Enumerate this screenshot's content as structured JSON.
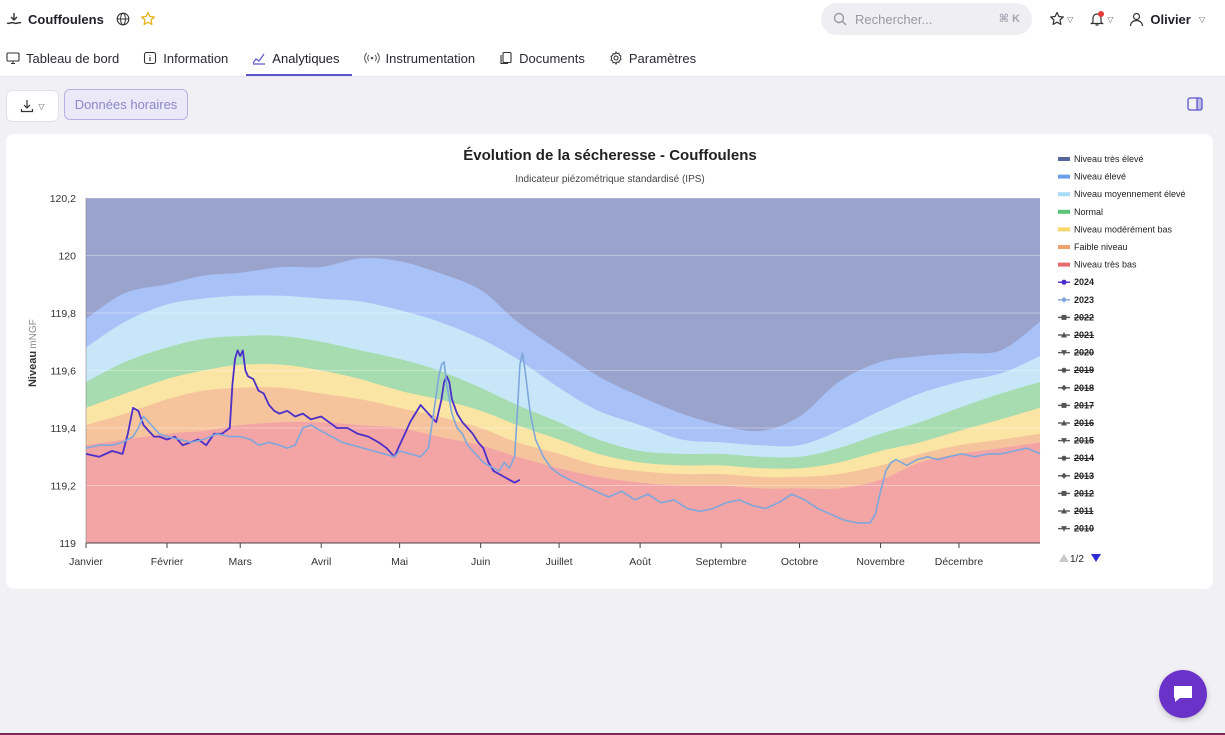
{
  "header": {
    "site_name": "Couffoulens",
    "search_placeholder": "Rechercher...",
    "search_shortcut": "⌘ K",
    "user_name": "Olivier"
  },
  "tabs": [
    {
      "label": "Tableau de bord",
      "icon": "monitor-icon"
    },
    {
      "label": "Information",
      "icon": "info-icon"
    },
    {
      "label": "Analytiques",
      "icon": "analytics-icon",
      "active": true
    },
    {
      "label": "Instrumentation",
      "icon": "signal-icon"
    },
    {
      "label": "Documents",
      "icon": "documents-icon"
    },
    {
      "label": "Paramètres",
      "icon": "gear-icon"
    }
  ],
  "toolbar": {
    "hourly_label": "Données horaires"
  },
  "colors": {
    "accent": "#5b55c9",
    "chat": "#6a32c9"
  },
  "chart_data": {
    "type": "area",
    "title": "Évolution de la sécheresse - Couffoulens",
    "subtitle": "Indicateur piézométrique standardisé (IPS)",
    "ylabel": "Niveau",
    "yunit": "mNGF",
    "ylim": [
      119,
      120.2
    ],
    "yticks": [
      "120,2",
      "120",
      "119,8",
      "119,6",
      "119,4",
      "119,2",
      "119"
    ],
    "ytick_values": [
      120.2,
      120,
      119.8,
      119.6,
      119.4,
      119.2,
      119
    ],
    "xlim": [
      0,
      365
    ],
    "months": [
      "Janvier",
      "Février",
      "Mars",
      "Avril",
      "Mai",
      "Juin",
      "Juillet",
      "Août",
      "Septembre",
      "Octobre",
      "Novembre",
      "Décembre"
    ],
    "month_days": [
      0,
      31,
      59,
      90,
      120,
      151,
      181,
      212,
      243,
      273,
      304,
      334
    ],
    "grid": true,
    "legend_position": "right",
    "legend_page": "1/2",
    "bands_x": [
      0,
      15,
      31,
      45,
      59,
      75,
      90,
      105,
      120,
      135,
      151,
      165,
      181,
      196,
      212,
      228,
      243,
      258,
      273,
      288,
      304,
      319,
      334,
      350,
      365
    ],
    "bands": [
      {
        "name": "Niveau très élevé",
        "color": "#9aa3cb",
        "legend_color": "#55659d",
        "upper": [
          120.2,
          120.2,
          120.2,
          120.2,
          120.2,
          120.2,
          120.2,
          120.2,
          120.2,
          120.2,
          120.2,
          120.2,
          120.2,
          120.2,
          120.2,
          120.2,
          120.2,
          120.2,
          120.2,
          120.2,
          120.2,
          120.2,
          120.2,
          120.2,
          120.2
        ]
      },
      {
        "name": "Niveau élevé",
        "color": "#a8c1f7",
        "legend_color": "#6b9eeb",
        "upper": [
          119.78,
          119.87,
          119.9,
          119.93,
          119.94,
          119.96,
          119.96,
          119.99,
          119.98,
          119.94,
          119.88,
          119.77,
          119.67,
          119.58,
          119.51,
          119.45,
          119.41,
          119.39,
          119.44,
          119.56,
          119.63,
          119.65,
          119.66,
          119.67,
          119.77
        ]
      },
      {
        "name": "Niveau moyennement élevé",
        "color": "#c7e7f9",
        "legend_color": "#a9dcf4",
        "upper": [
          119.68,
          119.77,
          119.83,
          119.85,
          119.86,
          119.86,
          119.85,
          119.84,
          119.81,
          119.77,
          119.71,
          119.64,
          119.54,
          119.46,
          119.41,
          119.36,
          119.35,
          119.34,
          119.34,
          119.39,
          119.46,
          119.52,
          119.56,
          119.59,
          119.65
        ]
      },
      {
        "name": "Normal",
        "color": "#a6dcb0",
        "legend_color": "#5ec47a",
        "upper": [
          119.56,
          119.63,
          119.68,
          119.71,
          119.72,
          119.72,
          119.7,
          119.67,
          119.64,
          119.6,
          119.54,
          119.48,
          119.42,
          119.36,
          119.32,
          119.31,
          119.31,
          119.3,
          119.3,
          119.33,
          119.38,
          119.42,
          119.47,
          119.52,
          119.56
        ]
      },
      {
        "name": "Niveau modérément bas",
        "color": "#fbe5a4",
        "legend_color": "#f7d66e",
        "upper": [
          119.47,
          119.52,
          119.57,
          119.6,
          119.62,
          119.62,
          119.6,
          119.57,
          119.53,
          119.5,
          119.46,
          119.41,
          119.36,
          119.31,
          119.28,
          119.27,
          119.27,
          119.26,
          119.26,
          119.28,
          119.32,
          119.35,
          119.39,
          119.43,
          119.47
        ]
      },
      {
        "name": "Faible niveau",
        "color": "#f6c49c",
        "legend_color": "#f2a36b",
        "upper": [
          119.41,
          119.45,
          119.5,
          119.53,
          119.54,
          119.54,
          119.52,
          119.5,
          119.47,
          119.44,
          119.4,
          119.35,
          119.31,
          119.27,
          119.25,
          119.24,
          119.24,
          119.23,
          119.23,
          119.24,
          119.27,
          119.31,
          119.34,
          119.36,
          119.38
        ]
      },
      {
        "name": "Niveau très bas",
        "color": "#f3a5a5",
        "legend_color": "#e96a6a",
        "upper": [
          119.34,
          119.36,
          119.38,
          119.39,
          119.41,
          119.42,
          119.42,
          119.41,
          119.4,
          119.37,
          119.34,
          119.3,
          119.26,
          119.23,
          119.21,
          119.2,
          119.2,
          119.19,
          119.19,
          119.19,
          119.22,
          119.28,
          119.31,
          119.33,
          119.35
        ]
      }
    ],
    "series": [
      {
        "name": "2024",
        "color": "#4b2fc9",
        "marker": "circle",
        "active": true,
        "x": [
          0,
          5,
          10,
          14,
          16,
          18,
          20,
          22,
          24,
          26,
          28,
          31,
          34,
          37,
          40,
          43,
          46,
          49,
          52,
          55,
          56,
          57,
          58,
          59,
          60,
          61,
          62,
          64,
          66,
          68,
          70,
          72,
          74,
          77,
          80,
          83,
          86,
          90,
          93,
          96,
          100,
          104,
          108,
          112,
          115,
          118,
          120,
          122,
          124,
          126,
          128,
          130,
          132,
          134,
          136,
          137,
          138,
          139,
          140,
          142,
          144,
          146,
          148,
          150,
          152,
          154,
          156,
          158,
          160,
          162,
          164,
          166
        ],
        "y": [
          119.31,
          119.3,
          119.32,
          119.31,
          119.38,
          119.47,
          119.46,
          119.41,
          119.39,
          119.37,
          119.37,
          119.36,
          119.37,
          119.34,
          119.35,
          119.36,
          119.34,
          119.38,
          119.38,
          119.4,
          119.55,
          119.64,
          119.67,
          119.65,
          119.67,
          119.6,
          119.58,
          119.57,
          119.53,
          119.52,
          119.48,
          119.46,
          119.45,
          119.46,
          119.44,
          119.45,
          119.43,
          119.44,
          119.42,
          119.4,
          119.4,
          119.38,
          119.37,
          119.35,
          119.33,
          119.3,
          119.34,
          119.38,
          119.42,
          119.45,
          119.48,
          119.46,
          119.44,
          119.42,
          119.5,
          119.56,
          119.58,
          119.56,
          119.5,
          119.45,
          119.42,
          119.4,
          119.38,
          119.35,
          119.33,
          119.28,
          119.25,
          119.24,
          119.23,
          119.22,
          119.21,
          119.22
        ]
      },
      {
        "name": "2023",
        "color": "#7ea7dc",
        "marker": "diamond",
        "active": true,
        "x": [
          0,
          5,
          10,
          14,
          18,
          20,
          22,
          26,
          28,
          31,
          36,
          40,
          45,
          50,
          55,
          59,
          63,
          66,
          70,
          74,
          77,
          80,
          83,
          86,
          90,
          94,
          98,
          102,
          106,
          110,
          114,
          118,
          120,
          124,
          128,
          131,
          133,
          135,
          136,
          137,
          138,
          140,
          142,
          144,
          146,
          148,
          150,
          152,
          154,
          156,
          158,
          160,
          162,
          164,
          165,
          166,
          167,
          168,
          170,
          172,
          175,
          178,
          181,
          185,
          190,
          195,
          200,
          205,
          210,
          215,
          220,
          225,
          230,
          235,
          240,
          245,
          250,
          255,
          260,
          265,
          270,
          275,
          280,
          285,
          290,
          295,
          300,
          302,
          304,
          306,
          308,
          310,
          314,
          318,
          322,
          326,
          330,
          335,
          340,
          345,
          350,
          355,
          360,
          365
        ],
        "y": [
          119.33,
          119.34,
          119.34,
          119.35,
          119.37,
          119.4,
          119.44,
          119.4,
          119.38,
          119.37,
          119.36,
          119.35,
          119.36,
          119.38,
          119.37,
          119.37,
          119.36,
          119.34,
          119.35,
          119.34,
          119.33,
          119.34,
          119.4,
          119.41,
          119.39,
          119.37,
          119.35,
          119.34,
          119.33,
          119.32,
          119.31,
          119.3,
          119.32,
          119.31,
          119.3,
          119.33,
          119.45,
          119.58,
          119.62,
          119.63,
          119.55,
          119.45,
          119.4,
          119.38,
          119.34,
          119.32,
          119.3,
          119.28,
          119.27,
          119.26,
          119.25,
          119.28,
          119.26,
          119.3,
          119.45,
          119.62,
          119.66,
          119.6,
          119.45,
          119.36,
          119.3,
          119.26,
          119.24,
          119.22,
          119.2,
          119.18,
          119.16,
          119.18,
          119.15,
          119.17,
          119.14,
          119.15,
          119.12,
          119.11,
          119.12,
          119.14,
          119.15,
          119.13,
          119.12,
          119.14,
          119.17,
          119.15,
          119.12,
          119.1,
          119.08,
          119.07,
          119.07,
          119.1,
          119.18,
          119.25,
          119.28,
          119.29,
          119.27,
          119.29,
          119.3,
          119.29,
          119.3,
          119.31,
          119.3,
          119.31,
          119.31,
          119.32,
          119.33,
          119.31
        ]
      }
    ],
    "legend_items": [
      {
        "label": "Niveau très élevé",
        "kind": "band",
        "color": "#55659d"
      },
      {
        "label": "Niveau élevé",
        "kind": "band",
        "color": "#6b9eeb"
      },
      {
        "label": "Niveau moyennement élevé",
        "kind": "band",
        "color": "#a9dcf4"
      },
      {
        "label": "Normal",
        "kind": "band",
        "color": "#5ec47a"
      },
      {
        "label": "Niveau modérément bas",
        "kind": "band",
        "color": "#f7d66e"
      },
      {
        "label": "Faible niveau",
        "kind": "band",
        "color": "#f2a36b"
      },
      {
        "label": "Niveau très bas",
        "kind": "band",
        "color": "#e96a6a"
      },
      {
        "label": "2024",
        "kind": "series",
        "color": "#4b2fc9",
        "marker": "circle",
        "hidden": false
      },
      {
        "label": "2023",
        "kind": "series",
        "color": "#7ea7dc",
        "marker": "diamond",
        "hidden": false
      },
      {
        "label": "2022",
        "kind": "series",
        "color": "#555555",
        "marker": "square",
        "hidden": true
      },
      {
        "label": "2021",
        "kind": "series",
        "color": "#555555",
        "marker": "triangle",
        "hidden": true
      },
      {
        "label": "2020",
        "kind": "series",
        "color": "#555555",
        "marker": "triangle-down",
        "hidden": true
      },
      {
        "label": "2019",
        "kind": "series",
        "color": "#555555",
        "marker": "circle",
        "hidden": true
      },
      {
        "label": "2018",
        "kind": "series",
        "color": "#555555",
        "marker": "diamond",
        "hidden": true
      },
      {
        "label": "2017",
        "kind": "series",
        "color": "#555555",
        "marker": "square",
        "hidden": true
      },
      {
        "label": "2016",
        "kind": "series",
        "color": "#555555",
        "marker": "triangle",
        "hidden": true
      },
      {
        "label": "2015",
        "kind": "series",
        "color": "#555555",
        "marker": "triangle-down",
        "hidden": true
      },
      {
        "label": "2014",
        "kind": "series",
        "color": "#555555",
        "marker": "circle",
        "hidden": true
      },
      {
        "label": "2013",
        "kind": "series",
        "color": "#555555",
        "marker": "diamond",
        "hidden": true
      },
      {
        "label": "2012",
        "kind": "series",
        "color": "#555555",
        "marker": "square",
        "hidden": true
      },
      {
        "label": "2011",
        "kind": "series",
        "color": "#555555",
        "marker": "triangle",
        "hidden": true
      },
      {
        "label": "2010",
        "kind": "series",
        "color": "#555555",
        "marker": "triangle-down",
        "hidden": true
      }
    ]
  }
}
